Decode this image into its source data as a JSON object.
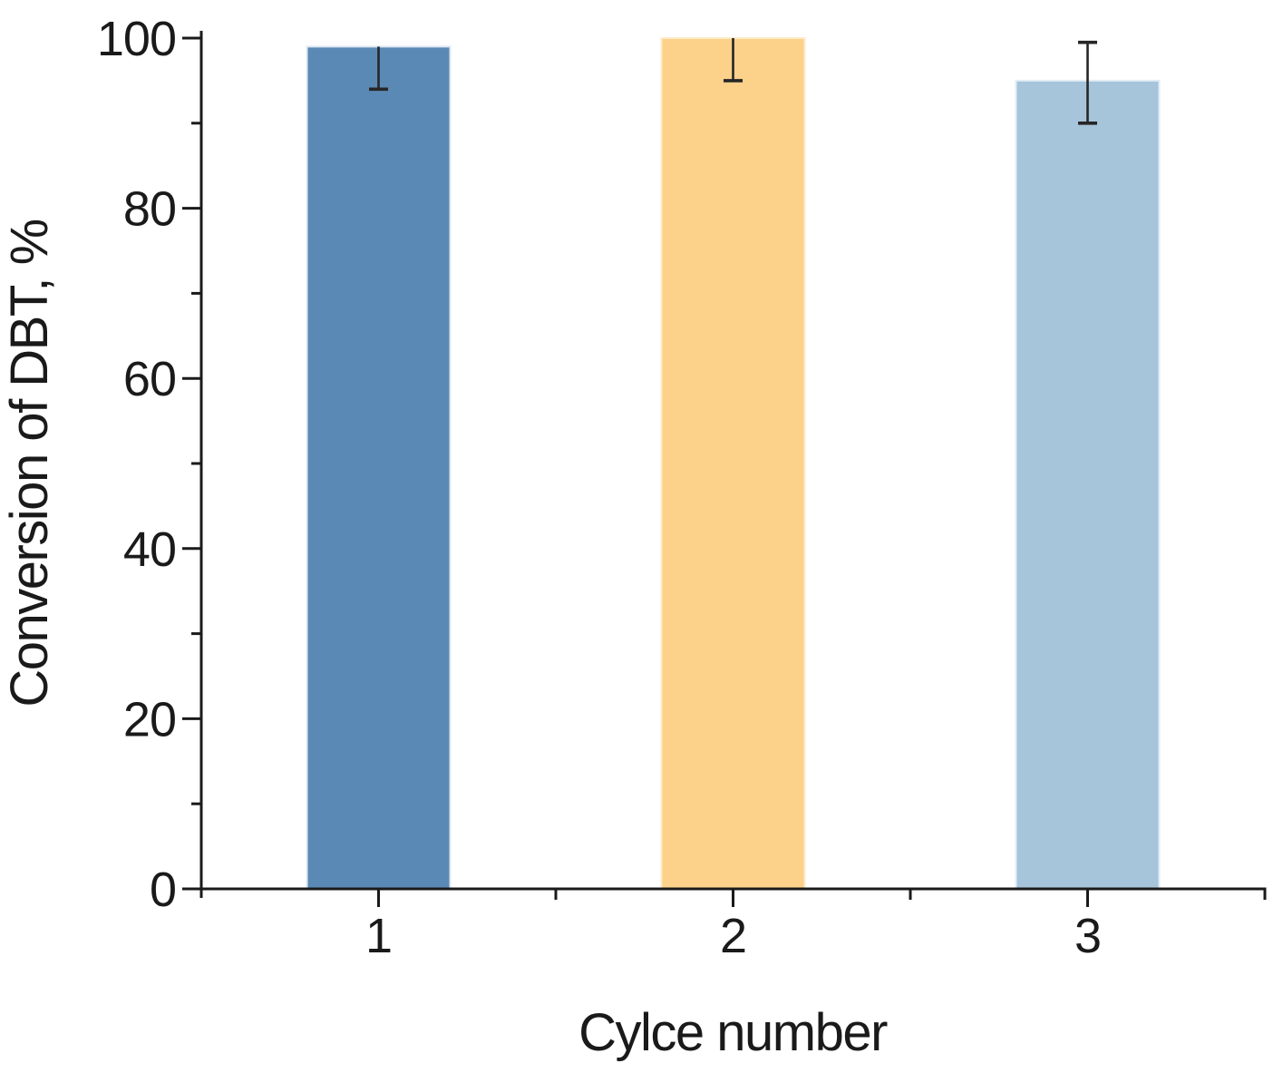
{
  "figure": {
    "background_color": "#ffffff",
    "ink_color": "#1a1a1a"
  },
  "chart_data": {
    "type": "bar",
    "title": "",
    "xlabel": "Cylce number",
    "ylabel": "Conversion of DBT, %",
    "categories": [
      "1",
      "2",
      "3"
    ],
    "values": [
      99,
      100,
      95
    ],
    "error_minus": [
      5,
      5,
      5
    ],
    "error_plus": [
      0,
      0,
      4.5
    ],
    "bar_colors": [
      "#5B89B5",
      "#FCD189",
      "#A6C4DA"
    ],
    "bar_edge_colors": [
      "#DEE8F3",
      "#FDEBC9",
      "#E3ECF5"
    ],
    "error_bar_color": "#262626",
    "ylim": [
      0,
      100
    ],
    "xlim": [
      0.5,
      3.5
    ],
    "y_major_ticks": [
      0,
      20,
      40,
      60,
      80,
      100
    ],
    "y_minor_ticks": [
      10,
      30,
      50,
      70,
      90
    ],
    "x_major_ticks": [
      1,
      2,
      3
    ],
    "x_minor_ticks": [
      1.5,
      2.5,
      3.5
    ],
    "bar_width_fraction": 0.4,
    "grid": false,
    "legend": false,
    "axes_style": "ticks-outward, left and bottom spines only"
  }
}
